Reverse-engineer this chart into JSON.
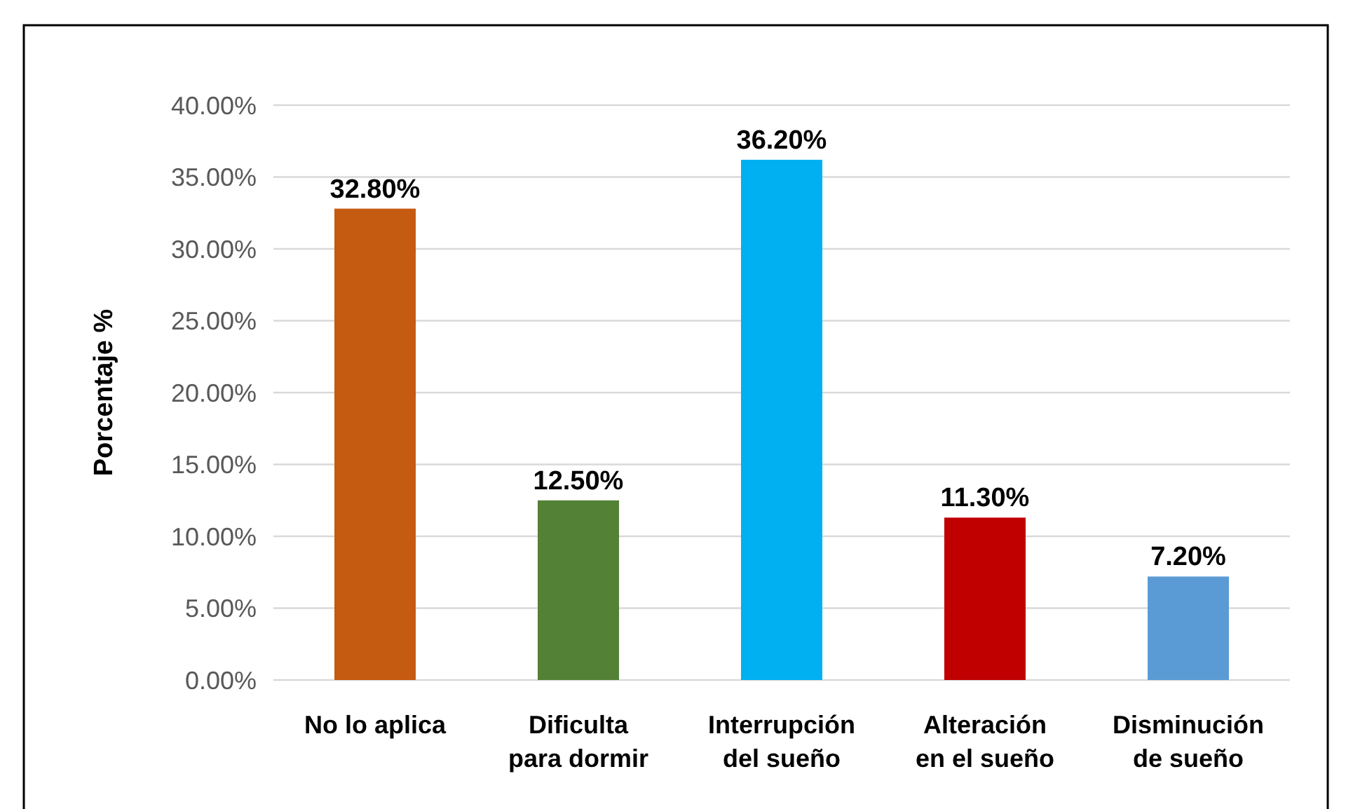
{
  "chart_data": {
    "type": "bar",
    "ylabel": "Porcentaje %",
    "categories": [
      "No lo aplica",
      "Dificulta para dormir",
      "Interrupción del sueño",
      "Alteración en el sueño",
      "Disminución de sueño"
    ],
    "values": [
      32.8,
      12.5,
      36.2,
      11.3,
      7.2
    ],
    "colors": [
      "#c55a11",
      "#538135",
      "#00b0f0",
      "#c00000",
      "#5b9bd5"
    ],
    "value_labels": [
      "32.80%",
      "12.50%",
      "36.20%",
      "11.30%",
      "7.20%"
    ],
    "ylim": [
      0,
      40
    ],
    "yticks": [
      {
        "value": 0,
        "label": "0.00%"
      },
      {
        "value": 5,
        "label": "5.00%"
      },
      {
        "value": 10,
        "label": "10.00%"
      },
      {
        "value": 15,
        "label": "15.00%"
      },
      {
        "value": 20,
        "label": "20.00%"
      },
      {
        "value": 25,
        "label": "25.00%"
      },
      {
        "value": 30,
        "label": "30.00%"
      },
      {
        "value": 35,
        "label": "35.00%"
      },
      {
        "value": 40,
        "label": "40.00%"
      }
    ],
    "grid": "y"
  }
}
